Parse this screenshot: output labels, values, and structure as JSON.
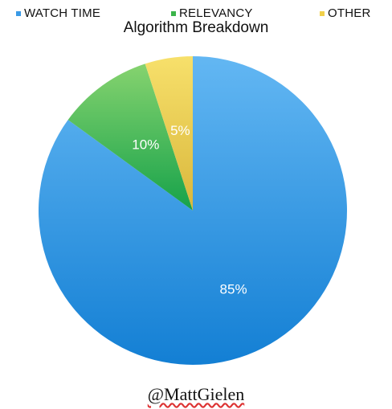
{
  "chart_data": {
    "type": "pie",
    "title": "Algorithm Breakdown",
    "legend_position": "top",
    "categories": [
      "WATCH TIME",
      "RELEVANCY",
      "OTHER"
    ],
    "values": [
      85,
      10,
      5
    ],
    "labels": [
      "85%",
      "10%",
      "5%"
    ],
    "colors": [
      "#3a9ae6",
      "#3bb44a",
      "#f1d04a"
    ]
  },
  "credit": "@MattGielen"
}
